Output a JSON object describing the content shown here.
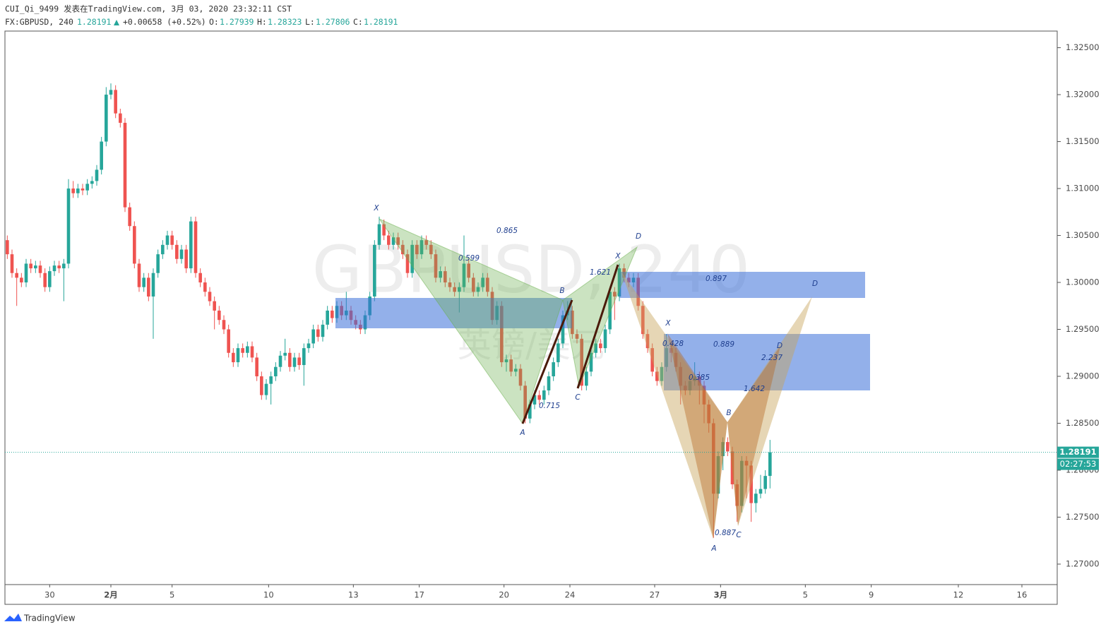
{
  "header": {
    "line1": "CUI_Qi_9499 发表在TradingView.com, 3月 03, 2020 23:32:11 CST",
    "symbol": "FX:GBPUSD, 240",
    "change": "+0.00658 (+0.52%)",
    "ohlc_labels": [
      "O:",
      "H:",
      "L:",
      "C:"
    ]
  },
  "footer": {
    "brand": "TradingView"
  },
  "chart_data": {
    "type": "candlestick",
    "watermark": [
      "GBPUSD, 240",
      "英镑/美元"
    ],
    "countdown": "02:27:53",
    "up_color": "#26a69a",
    "down_color": "#ef5350",
    "xlim": [
      -0.5,
      223
    ],
    "xticks": [
      {
        "value": 9,
        "label": "30"
      },
      {
        "value": 22,
        "label": "2月"
      },
      {
        "value": 35,
        "label": "5"
      },
      {
        "value": 55.5,
        "label": "10"
      },
      {
        "value": 73.5,
        "label": "13"
      },
      {
        "value": 87.5,
        "label": "17"
      },
      {
        "value": 105.5,
        "label": "20"
      },
      {
        "value": 119.5,
        "label": "24"
      },
      {
        "value": 137.5,
        "label": "27"
      },
      {
        "value": 151.5,
        "label": "3月"
      },
      {
        "value": 169.5,
        "label": "5"
      },
      {
        "value": 183.5,
        "label": "9"
      },
      {
        "value": 202,
        "label": "12"
      },
      {
        "value": 215.5,
        "label": "16"
      }
    ],
    "ylim": [
      1.26782,
      1.32677
    ],
    "yticks": [
      {
        "value": 1.27,
        "label": "1.27000"
      },
      {
        "value": 1.275,
        "label": "1.27500"
      },
      {
        "value": 1.28,
        "label": "1.28000"
      },
      {
        "value": 1.285,
        "label": "1.28500"
      },
      {
        "value": 1.29,
        "label": "1.29000"
      },
      {
        "value": 1.295,
        "label": "1.29500"
      },
      {
        "value": 1.3,
        "label": "1.30000"
      },
      {
        "value": 1.305,
        "label": "1.30500"
      },
      {
        "value": 1.31,
        "label": "1.31000"
      },
      {
        "value": 1.315,
        "label": "1.31500"
      },
      {
        "value": 1.32,
        "label": "1.32000"
      },
      {
        "value": 1.325,
        "label": "1.32500"
      }
    ],
    "annotations": [
      "X",
      "0.865",
      "0.599",
      "B",
      "A",
      "0.715",
      "C",
      "D",
      "X",
      "1.621",
      "0.897",
      "D",
      "X",
      "0.428",
      "0.889",
      "D",
      "2.237",
      "0.385",
      "1.642",
      "B",
      "0.887",
      "C",
      "A"
    ],
    "open": [
      1.3045,
      1.303,
      1.301,
      1.3005,
      1.3,
      1.302,
      1.3015,
      1.3018,
      1.301,
      1.2995,
      1.3012,
      1.3018,
      1.3015,
      1.302,
      1.31,
      1.3095,
      1.31,
      1.3098,
      1.3105,
      1.3108,
      1.312,
      1.315,
      1.32,
      1.3205,
      1.318,
      1.317,
      1.308,
      1.306,
      1.302,
      1.2995,
      1.3005,
      1.2985,
      1.301,
      1.303,
      1.304,
      1.305,
      1.304,
      1.3025,
      1.3035,
      1.3015,
      1.3065,
      1.301,
      1.3,
      1.299,
      1.298,
      1.297,
      1.296,
      1.295,
      1.2925,
      1.2915,
      1.293,
      1.2925,
      1.2932,
      1.292,
      1.29,
      1.288,
      1.2892,
      1.29,
      1.291,
      1.2922,
      1.2925,
      1.291,
      1.292,
      1.2912,
      1.293,
      1.2935,
      1.295,
      1.2942,
      1.2955,
      1.297,
      1.2962,
      1.2975,
      1.2965,
      1.297,
      1.296,
      1.2955,
      1.295,
      1.2965,
      1.2985,
      1.304,
      1.3062,
      1.305,
      1.304,
      1.3048,
      1.304,
      1.303,
      1.301,
      1.304,
      1.303,
      1.3045,
      1.304,
      1.303,
      1.3005,
      1.3012,
      1.3,
      1.2995,
      1.299,
      1.2995,
      1.302,
      1.3005,
      1.299,
      1.2995,
      1.3005,
      1.299,
      1.296,
      1.2975,
      1.2915,
      1.2918,
      1.2905,
      1.2908,
      1.289,
      1.2855,
      1.287,
      1.288,
      1.2875,
      1.2885,
      1.29,
      1.2915,
      1.2935,
      1.2965,
      1.297,
      1.2945,
      1.294,
      1.289,
      1.2905,
      1.2925,
      1.2935,
      1.293,
      1.295,
      1.299,
      1.2985,
      1.3015,
      1.3005,
      1.3,
      1.3005,
      1.2975,
      1.2945,
      1.293,
      1.2905,
      1.2895,
      1.291,
      1.293,
      1.2925,
      1.291,
      1.289,
      1.2885,
      1.2895,
      1.29,
      1.289,
      1.287,
      1.285,
      1.2775,
      1.2815,
      1.283,
      1.282,
      1.2785,
      1.2762,
      1.281,
      1.2805,
      1.2765,
      1.2775,
      1.278,
      1.27939
    ],
    "high": [
      1.305,
      1.3035,
      1.3015,
      1.301,
      1.3025,
      1.3025,
      1.3023,
      1.3023,
      1.3015,
      1.3017,
      1.3023,
      1.3023,
      1.3025,
      1.311,
      1.3108,
      1.3105,
      1.3105,
      1.311,
      1.3113,
      1.3125,
      1.3155,
      1.3208,
      1.3212,
      1.321,
      1.3185,
      1.3175,
      1.3085,
      1.3065,
      1.3025,
      1.301,
      1.301,
      1.3015,
      1.3035,
      1.3045,
      1.3055,
      1.3055,
      1.3045,
      1.304,
      1.304,
      1.307,
      1.307,
      1.3015,
      1.3005,
      1.2995,
      1.2985,
      1.2975,
      1.2965,
      1.2955,
      1.293,
      1.2935,
      1.2935,
      1.2937,
      1.2937,
      1.2925,
      1.2905,
      1.2897,
      1.2905,
      1.2915,
      1.2927,
      1.294,
      1.293,
      1.2925,
      1.2925,
      1.2935,
      1.294,
      1.2955,
      1.2955,
      1.296,
      1.2975,
      1.2975,
      1.298,
      1.298,
      1.299,
      1.2975,
      1.2965,
      1.296,
      1.297,
      1.299,
      1.3045,
      1.307,
      1.3067,
      1.3055,
      1.3053,
      1.3053,
      1.3045,
      1.3035,
      1.3045,
      1.3045,
      1.305,
      1.305,
      1.3045,
      1.3035,
      1.3017,
      1.3017,
      1.3005,
      1.3,
      1.3,
      1.305,
      1.3025,
      1.301,
      1.3,
      1.301,
      1.301,
      1.2995,
      1.298,
      1.298,
      1.2923,
      1.2923,
      1.2913,
      1.2913,
      1.2895,
      1.2875,
      1.2885,
      1.2885,
      1.289,
      1.2905,
      1.292,
      1.294,
      1.297,
      1.298,
      1.2975,
      1.295,
      1.2945,
      1.291,
      1.293,
      1.294,
      1.294,
      1.2955,
      1.2995,
      1.2995,
      1.302,
      1.302,
      1.301,
      1.301,
      1.301,
      1.298,
      1.295,
      1.2935,
      1.291,
      1.2915,
      1.2945,
      1.2935,
      1.293,
      1.2915,
      1.2895,
      1.29,
      1.2915,
      1.2905,
      1.2895,
      1.2875,
      1.2855,
      1.282,
      1.2835,
      1.2835,
      1.2825,
      1.279,
      1.2815,
      1.2815,
      1.281,
      1.278,
      1.2795,
      1.28,
      1.28323
    ],
    "low": [
      1.3025,
      1.3005,
      1.2975,
      1.2995,
      1.2995,
      1.301,
      1.301,
      1.3005,
      1.299,
      1.299,
      1.3007,
      1.301,
      1.298,
      1.3015,
      1.309,
      1.309,
      1.3093,
      1.3093,
      1.31,
      1.3103,
      1.3115,
      1.3145,
      1.3195,
      1.3175,
      1.3165,
      1.3075,
      1.3055,
      1.3015,
      1.299,
      1.299,
      1.298,
      1.294,
      1.3005,
      1.3025,
      1.3035,
      1.3035,
      1.302,
      1.302,
      1.301,
      1.301,
      1.3005,
      1.2995,
      1.2985,
      1.2975,
      1.295,
      1.2955,
      1.2945,
      1.292,
      1.291,
      1.291,
      1.292,
      1.292,
      1.2915,
      1.2895,
      1.2875,
      1.2875,
      1.287,
      1.2895,
      1.2905,
      1.2917,
      1.2905,
      1.2905,
      1.2907,
      1.289,
      1.2925,
      1.293,
      1.2937,
      1.2937,
      1.295,
      1.2957,
      1.2957,
      1.296,
      1.296,
      1.2955,
      1.295,
      1.2945,
      1.2945,
      1.296,
      1.298,
      1.3035,
      1.3045,
      1.3035,
      1.3035,
      1.3035,
      1.3025,
      1.3005,
      1.3005,
      1.3025,
      1.3025,
      1.3035,
      1.3025,
      1.3,
      1.3,
      1.2995,
      1.299,
      1.2985,
      1.2968,
      1.299,
      1.3,
      1.2985,
      1.2985,
      1.299,
      1.2985,
      1.2955,
      1.2955,
      1.291,
      1.2905,
      1.29,
      1.29,
      1.2885,
      1.285,
      1.285,
      1.2865,
      1.287,
      1.287,
      1.288,
      1.2895,
      1.291,
      1.293,
      1.296,
      1.294,
      1.2935,
      1.2885,
      1.2885,
      1.29,
      1.292,
      1.2925,
      1.2925,
      1.2945,
      1.296,
      1.298,
      1.3,
      1.2995,
      1.2995,
      1.297,
      1.294,
      1.2925,
      1.29,
      1.289,
      1.289,
      1.2905,
      1.2915,
      1.2905,
      1.287,
      1.288,
      1.288,
      1.289,
      1.287,
      1.285,
      1.284,
      1.2728,
      1.277,
      1.28,
      1.2815,
      1.278,
      1.2745,
      1.2755,
      1.277,
      1.2745,
      1.2755,
      1.277,
      1.2775,
      1.27806
    ],
    "close": [
      1.303,
      1.301,
      1.3005,
      1.3,
      1.302,
      1.3015,
      1.3018,
      1.301,
      1.2995,
      1.3012,
      1.3018,
      1.3015,
      1.302,
      1.31,
      1.3095,
      1.31,
      1.3098,
      1.3105,
      1.3108,
      1.312,
      1.315,
      1.32,
      1.3205,
      1.318,
      1.317,
      1.308,
      1.306,
      1.302,
      1.2995,
      1.3005,
      1.2985,
      1.301,
      1.303,
      1.304,
      1.305,
      1.304,
      1.3025,
      1.3035,
      1.3015,
      1.3065,
      1.301,
      1.3,
      1.299,
      1.298,
      1.297,
      1.296,
      1.295,
      1.2925,
      1.2915,
      1.293,
      1.2925,
      1.2932,
      1.292,
      1.29,
      1.288,
      1.2892,
      1.29,
      1.291,
      1.2922,
      1.2925,
      1.291,
      1.292,
      1.2912,
      1.293,
      1.2935,
      1.295,
      1.2942,
      1.2955,
      1.297,
      1.2962,
      1.2975,
      1.2965,
      1.297,
      1.296,
      1.2955,
      1.295,
      1.2965,
      1.2985,
      1.304,
      1.3062,
      1.305,
      1.304,
      1.3048,
      1.304,
      1.303,
      1.301,
      1.304,
      1.303,
      1.3045,
      1.304,
      1.303,
      1.3005,
      1.3012,
      1.3,
      1.2995,
      1.299,
      1.2995,
      1.302,
      1.3005,
      1.299,
      1.2995,
      1.3005,
      1.299,
      1.296,
      1.2975,
      1.2915,
      1.2918,
      1.2905,
      1.2908,
      1.289,
      1.2855,
      1.287,
      1.288,
      1.2875,
      1.2885,
      1.29,
      1.2915,
      1.2935,
      1.2965,
      1.297,
      1.2945,
      1.294,
      1.289,
      1.2905,
      1.2925,
      1.2935,
      1.293,
      1.295,
      1.299,
      1.2985,
      1.3015,
      1.3005,
      1.3,
      1.3005,
      1.2975,
      1.2945,
      1.293,
      1.2905,
      1.2895,
      1.291,
      1.293,
      1.2925,
      1.291,
      1.289,
      1.2885,
      1.2895,
      1.29,
      1.289,
      1.287,
      1.285,
      1.2775,
      1.2815,
      1.283,
      1.282,
      1.2785,
      1.2762,
      1.281,
      1.2805,
      1.2765,
      1.2775,
      1.278,
      1.27939,
      1.28191
    ]
  }
}
